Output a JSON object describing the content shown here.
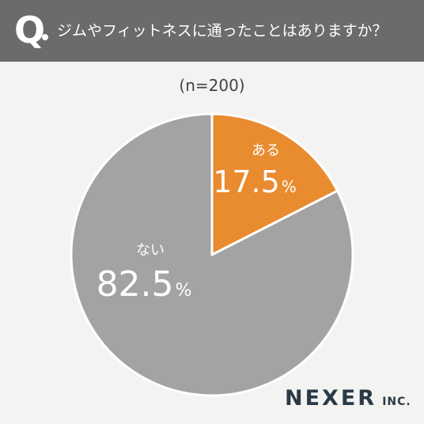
{
  "header": {
    "q_mark": "Q",
    "question": "ジムやフィットネスに通ったことはありますか？"
  },
  "chart_data": {
    "type": "pie",
    "title": "ジムやフィットネスに通ったことはありますか？",
    "subtitle": "(n=200)",
    "slices": [
      {
        "label": "ある",
        "value": 17.5,
        "display": "17.5",
        "unit": "%",
        "color": "#e98b2f"
      },
      {
        "label": "ない",
        "value": 82.5,
        "display": "82.5",
        "unit": "%",
        "color": "#a3a3a3"
      }
    ],
    "start_angle": "12 o'clock",
    "direction": "clockwise"
  },
  "brand": {
    "main": "NEXER",
    "sub": "INC."
  }
}
